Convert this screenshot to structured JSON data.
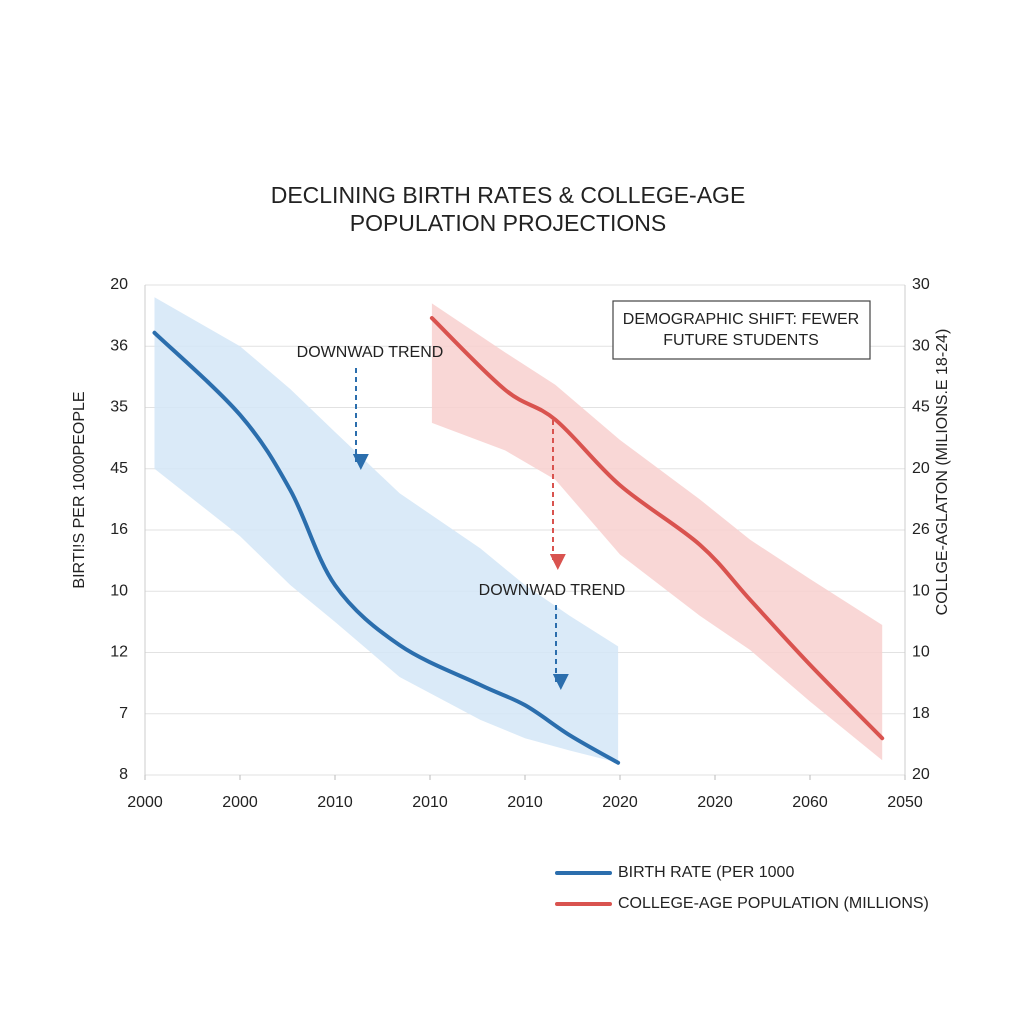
{
  "chart_data": {
    "type": "line",
    "title": [
      "DECLINING BIRTH RATES & COLLEGE-AGE",
      "POPULATION PROJECTIONS"
    ],
    "y_label": "BIRTI!S PER 1000PEOPLE",
    "y2_label": "COLLGE-AGLATON (MILIONS.E 18-24)",
    "xlim": [
      0,
      8
    ],
    "xticks": [
      {
        "value": 0,
        "label": "2000"
      },
      {
        "value": 1,
        "label": "2000"
      },
      {
        "value": 2,
        "label": "2010"
      },
      {
        "value": 3,
        "label": "2010"
      },
      {
        "value": 4,
        "label": "2010"
      },
      {
        "value": 5,
        "label": "2020"
      },
      {
        "value": 6,
        "label": "2020"
      },
      {
        "value": 7,
        "label": "2060"
      },
      {
        "value": 8,
        "label": "2050"
      }
    ],
    "ylim": [
      0,
      8
    ],
    "yticks": [
      {
        "value": 0,
        "label": "8"
      },
      {
        "value": 1,
        "label": "7"
      },
      {
        "value": 2,
        "label": "12"
      },
      {
        "value": 3,
        "label": "10"
      },
      {
        "value": 4,
        "label": "16"
      },
      {
        "value": 5,
        "label": "45"
      },
      {
        "value": 6,
        "label": "35"
      },
      {
        "value": 7,
        "label": "36"
      },
      {
        "value": 8,
        "label": "20"
      }
    ],
    "y2lim": [
      0,
      8
    ],
    "y2ticks": [
      {
        "value": 0,
        "label": "20"
      },
      {
        "value": 1,
        "label": "18"
      },
      {
        "value": 2,
        "label": "10"
      },
      {
        "value": 3,
        "label": "10"
      },
      {
        "value": 4,
        "label": "26"
      },
      {
        "value": 5,
        "label": "20"
      },
      {
        "value": 6,
        "label": "45"
      },
      {
        "value": 7,
        "label": "30"
      },
      {
        "value": 8,
        "label": "30"
      }
    ],
    "grid": true,
    "legend": "bottom-right",
    "annotations": [
      "DOWNWAD TREND",
      "DOWNWAD TREND",
      "DEMOGRAPHIC SHIFT: FEWER",
      "FUTURE STUDENTS"
    ],
    "series": [
      {
        "name": "BIRTH RATE (PER 1000",
        "color": "#2b6ead",
        "band_color": "#d3e6f7",
        "x": [
          0.1,
          1,
          1.53,
          2,
          2.68,
          3.53,
          4,
          4.47,
          4.98
        ],
        "values": [
          7.22,
          5.88,
          4.65,
          3.1,
          2.12,
          1.47,
          1.14,
          0.65,
          0.2
        ],
        "band_upper": [
          7.8,
          7.0,
          6.3,
          5.6,
          4.6,
          3.7,
          3.1,
          2.6,
          2.1
        ],
        "band_lower": [
          5.0,
          3.9,
          3.1,
          2.5,
          1.6,
          0.9,
          0.6,
          0.4,
          0.2
        ]
      },
      {
        "name": "COLLEGE-AGE POPULATION (MILLIONS)",
        "color": "#d9534f",
        "band_color": "#f8d0cf",
        "axis": "y2",
        "x": [
          3.02,
          3.79,
          4.32,
          5.0,
          5.84,
          6.37,
          7.0,
          7.76
        ],
        "values": [
          7.46,
          6.29,
          5.8,
          4.73,
          3.76,
          2.86,
          1.8,
          0.6
        ],
        "band_upper": [
          7.7,
          6.9,
          6.37,
          5.47,
          4.5,
          3.84,
          3.2,
          2.45
        ],
        "band_lower": [
          5.75,
          5.3,
          4.82,
          3.6,
          2.6,
          2.04,
          1.2,
          0.24
        ]
      }
    ]
  }
}
